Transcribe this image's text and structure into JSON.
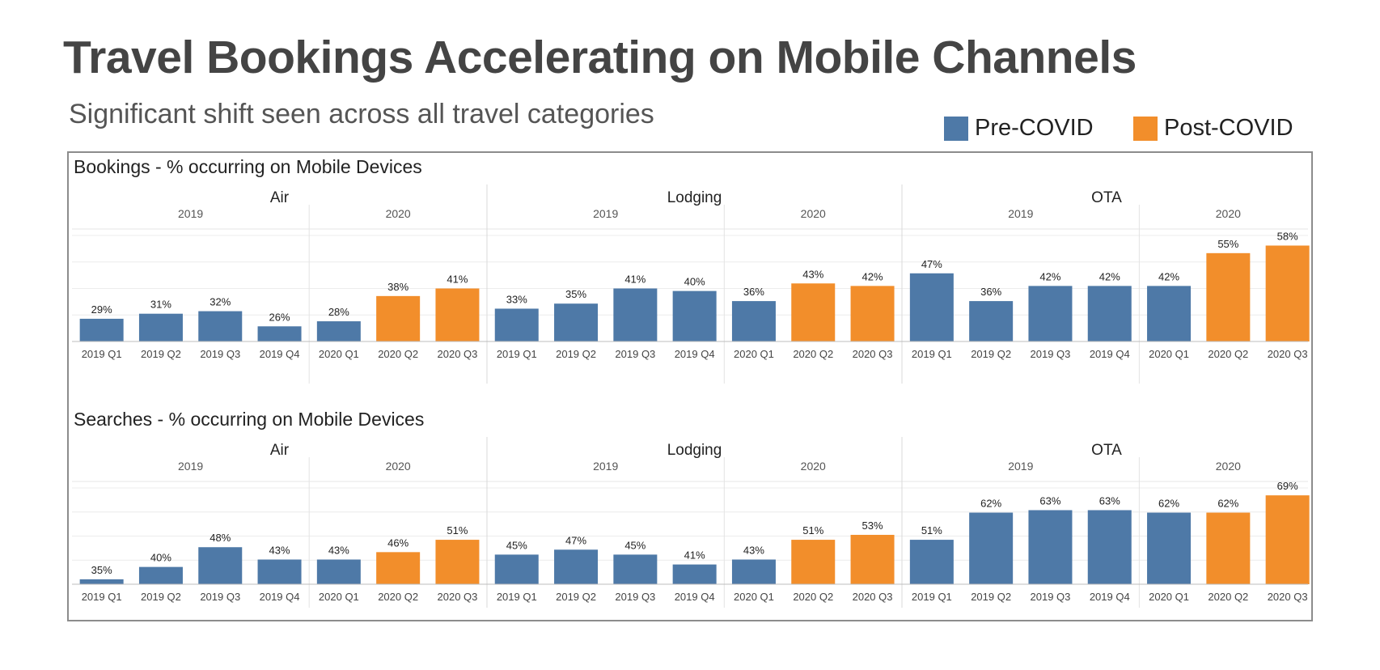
{
  "header": {
    "title": "Travel Bookings Accelerating on Mobile Channels",
    "subtitle": "Significant shift seen across all travel categories"
  },
  "legend": {
    "items": [
      {
        "label": "Pre-COVID",
        "color": "#4e79a7"
      },
      {
        "label": "Post-COVID",
        "color": "#f28e2b"
      }
    ]
  },
  "chart_data": [
    {
      "type": "bar",
      "title": "Bookings - % occurring on Mobile Devices",
      "value_format": "{v}%",
      "legend_position": "top-right",
      "grid": true,
      "ylim": [
        20,
        62
      ],
      "groups": [
        {
          "name": "Air",
          "years": [
            "2019",
            "2020"
          ],
          "bars": [
            {
              "year": "2019",
              "label": "2019 Q1",
              "value": 29,
              "series": "Pre-COVID"
            },
            {
              "year": "2019",
              "label": "2019 Q2",
              "value": 31,
              "series": "Pre-COVID"
            },
            {
              "year": "2019",
              "label": "2019 Q3",
              "value": 32,
              "series": "Pre-COVID"
            },
            {
              "year": "2019",
              "label": "2019 Q4",
              "value": 26,
              "series": "Pre-COVID"
            },
            {
              "year": "2020",
              "label": "2020 Q1",
              "value": 28,
              "series": "Pre-COVID"
            },
            {
              "year": "2020",
              "label": "2020 Q2",
              "value": 38,
              "series": "Post-COVID"
            },
            {
              "year": "2020",
              "label": "2020 Q3",
              "value": 41,
              "series": "Post-COVID"
            }
          ]
        },
        {
          "name": "Lodging",
          "years": [
            "2019",
            "2020"
          ],
          "bars": [
            {
              "year": "2019",
              "label": "2019 Q1",
              "value": 33,
              "series": "Pre-COVID"
            },
            {
              "year": "2019",
              "label": "2019 Q2",
              "value": 35,
              "series": "Pre-COVID"
            },
            {
              "year": "2019",
              "label": "2019 Q3",
              "value": 41,
              "series": "Pre-COVID"
            },
            {
              "year": "2019",
              "label": "2019 Q4",
              "value": 40,
              "series": "Pre-COVID"
            },
            {
              "year": "2020",
              "label": "2020 Q1",
              "value": 36,
              "series": "Pre-COVID"
            },
            {
              "year": "2020",
              "label": "2020 Q2",
              "value": 43,
              "series": "Post-COVID"
            },
            {
              "year": "2020",
              "label": "2020 Q3",
              "value": 42,
              "series": "Post-COVID"
            }
          ]
        },
        {
          "name": "OTA",
          "years": [
            "2019",
            "2020"
          ],
          "bars": [
            {
              "year": "2019",
              "label": "2019 Q1",
              "value": 47,
              "series": "Pre-COVID"
            },
            {
              "year": "2019",
              "label": "2019 Q2",
              "value": 36,
              "series": "Pre-COVID"
            },
            {
              "year": "2019",
              "label": "2019 Q3",
              "value": 42,
              "series": "Pre-COVID"
            },
            {
              "year": "2019",
              "label": "2019 Q4",
              "value": 42,
              "series": "Pre-COVID"
            },
            {
              "year": "2020",
              "label": "2020 Q1",
              "value": 42,
              "series": "Pre-COVID"
            },
            {
              "year": "2020",
              "label": "2020 Q2",
              "value": 55,
              "series": "Post-COVID"
            },
            {
              "year": "2020",
              "label": "2020 Q3",
              "value": 58,
              "series": "Post-COVID"
            }
          ]
        }
      ]
    },
    {
      "type": "bar",
      "title": "Searches - % occurring on Mobile Devices",
      "value_format": "{v}%",
      "legend_position": "top-right",
      "grid": true,
      "ylim": [
        33,
        72
      ],
      "groups": [
        {
          "name": "Air",
          "years": [
            "2019",
            "2020"
          ],
          "bars": [
            {
              "year": "2019",
              "label": "2019 Q1",
              "value": 35,
              "series": "Pre-COVID"
            },
            {
              "year": "2019",
              "label": "2019 Q2",
              "value": 40,
              "series": "Pre-COVID"
            },
            {
              "year": "2019",
              "label": "2019 Q3",
              "value": 48,
              "series": "Pre-COVID"
            },
            {
              "year": "2019",
              "label": "2019 Q4",
              "value": 43,
              "series": "Pre-COVID"
            },
            {
              "year": "2020",
              "label": "2020 Q1",
              "value": 43,
              "series": "Pre-COVID"
            },
            {
              "year": "2020",
              "label": "2020 Q2",
              "value": 46,
              "series": "Post-COVID"
            },
            {
              "year": "2020",
              "label": "2020 Q3",
              "value": 51,
              "series": "Post-COVID"
            }
          ]
        },
        {
          "name": "Lodging",
          "years": [
            "2019",
            "2020"
          ],
          "bars": [
            {
              "year": "2019",
              "label": "2019 Q1",
              "value": 45,
              "series": "Pre-COVID"
            },
            {
              "year": "2019",
              "label": "2019 Q2",
              "value": 47,
              "series": "Pre-COVID"
            },
            {
              "year": "2019",
              "label": "2019 Q3",
              "value": 45,
              "series": "Pre-COVID"
            },
            {
              "year": "2019",
              "label": "2019 Q4",
              "value": 41,
              "series": "Pre-COVID"
            },
            {
              "year": "2020",
              "label": "2020 Q1",
              "value": 43,
              "series": "Pre-COVID"
            },
            {
              "year": "2020",
              "label": "2020 Q2",
              "value": 51,
              "series": "Post-COVID"
            },
            {
              "year": "2020",
              "label": "2020 Q3",
              "value": 53,
              "series": "Post-COVID"
            }
          ]
        },
        {
          "name": "OTA",
          "years": [
            "2019",
            "2020"
          ],
          "bars": [
            {
              "year": "2019",
              "label": "2019 Q1",
              "value": 51,
              "series": "Pre-COVID"
            },
            {
              "year": "2019",
              "label": "2019 Q2",
              "value": 62,
              "series": "Pre-COVID"
            },
            {
              "year": "2019",
              "label": "2019 Q3",
              "value": 63,
              "series": "Pre-COVID"
            },
            {
              "year": "2019",
              "label": "2019 Q4",
              "value": 63,
              "series": "Pre-COVID"
            },
            {
              "year": "2020",
              "label": "2020 Q1",
              "value": 62,
              "series": "Pre-COVID"
            },
            {
              "year": "2020",
              "label": "2020 Q2",
              "value": 62,
              "series": "Post-COVID"
            },
            {
              "year": "2020",
              "label": "2020 Q3",
              "value": 69,
              "series": "Post-COVID"
            }
          ]
        }
      ]
    }
  ]
}
